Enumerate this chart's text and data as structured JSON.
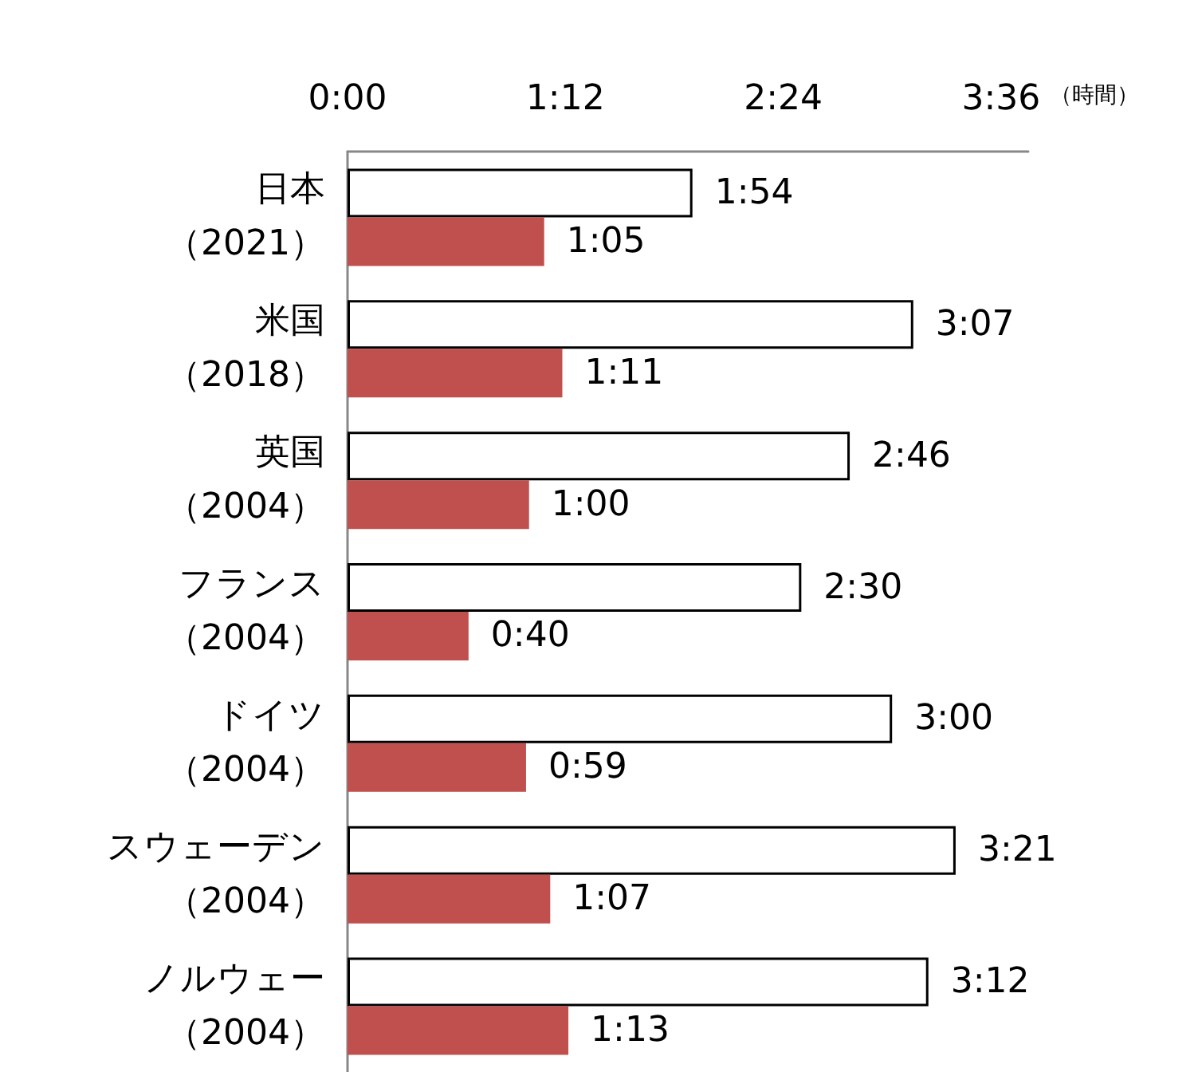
{
  "chart_data": {
    "type": "bar",
    "orientation": "horizontal",
    "xlabel": "（時間）",
    "categories": [
      "日本（2021）",
      "米国（2018）",
      "英国（2004）",
      "フランス（2004）",
      "ドイツ（2004）",
      "スウェーデン（2004）",
      "ノルウェー（2004）"
    ],
    "series": [
      {
        "color": "#ffffff",
        "values": [
          114,
          187,
          166,
          150,
          180,
          201,
          192
        ],
        "value_labels": [
          "1:54",
          "3:07",
          "2:46",
          "2:30",
          "3:00",
          "3:21",
          "3:12"
        ]
      },
      {
        "color": "#c0504d",
        "values": [
          65,
          71,
          60,
          40,
          59,
          67,
          73
        ],
        "value_labels": [
          "1:05",
          "1:11",
          "1:00",
          "0:40",
          "0:59",
          "1:07",
          "1:13"
        ]
      }
    ],
    "xlim": [
      0,
      225
    ],
    "xticks": [
      {
        "value": 0,
        "label": "0:00"
      },
      {
        "value": 72,
        "label": "1:12"
      },
      {
        "value": 144,
        "label": "2:24"
      },
      {
        "value": 216,
        "label": "3:36"
      }
    ]
  }
}
